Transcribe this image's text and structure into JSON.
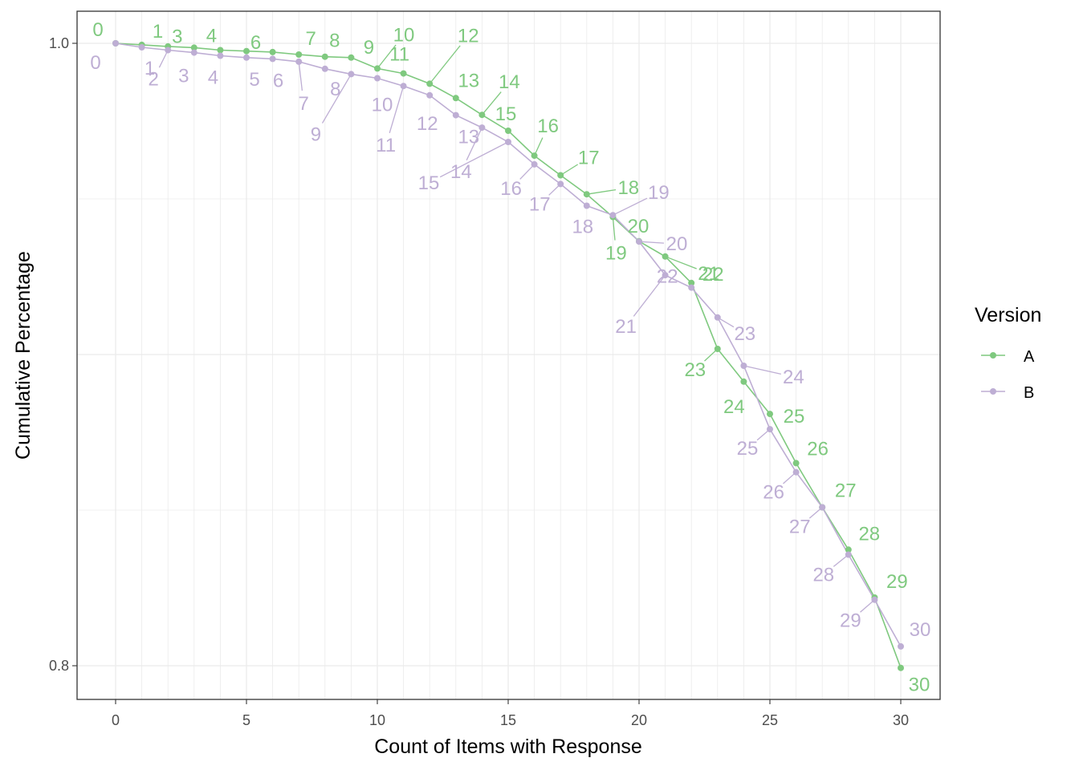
{
  "chart_data": {
    "type": "line",
    "xlabel": "Count of Items with Response",
    "ylabel": "Cumulative Percentage",
    "xlim": [
      -1.5,
      31.5
    ],
    "ylim": [
      0.789,
      1.01
    ],
    "x_ticks": [
      0,
      5,
      10,
      15,
      20,
      25,
      30
    ],
    "x_tick_labels": [
      "0",
      "5",
      "10",
      "15",
      "20",
      "25",
      "30"
    ],
    "y_ticks": [
      0.8,
      1.0
    ],
    "y_tick_labels": [
      "0.8",
      "1.0"
    ],
    "grid": true,
    "legend": {
      "title": "Version",
      "position": "right"
    },
    "x": [
      0,
      1,
      2,
      3,
      4,
      5,
      6,
      7,
      8,
      9,
      10,
      11,
      12,
      13,
      14,
      15,
      16,
      17,
      18,
      19,
      20,
      21,
      22,
      23,
      24,
      25,
      26,
      27,
      28,
      29,
      30
    ],
    "series": [
      {
        "name": "A",
        "color": "#7fc97f",
        "values": [
          1.0,
          0.9995,
          0.999,
          0.9986,
          0.9978,
          0.9975,
          0.9972,
          0.9964,
          0.9957,
          0.9954,
          0.9919,
          0.9903,
          0.987,
          0.9824,
          0.977,
          0.9719,
          0.9639,
          0.9576,
          0.9515,
          0.9442,
          0.9364,
          0.9315,
          0.923,
          0.9018,
          0.8913,
          0.8809,
          0.8651,
          0.8509,
          0.8373,
          0.8219,
          0.7993
        ]
      },
      {
        "name": "B",
        "color": "#beaed4",
        "values": [
          1.0,
          0.9987,
          0.9978,
          0.997,
          0.996,
          0.9954,
          0.995,
          0.9941,
          0.9918,
          0.9901,
          0.9888,
          0.9863,
          0.9833,
          0.9769,
          0.9729,
          0.9683,
          0.9611,
          0.9548,
          0.9478,
          0.9448,
          0.9363,
          0.9255,
          0.9215,
          0.9119,
          0.8964,
          0.876,
          0.8622,
          0.8509,
          0.8357,
          0.8212,
          0.8062
        ]
      }
    ]
  }
}
